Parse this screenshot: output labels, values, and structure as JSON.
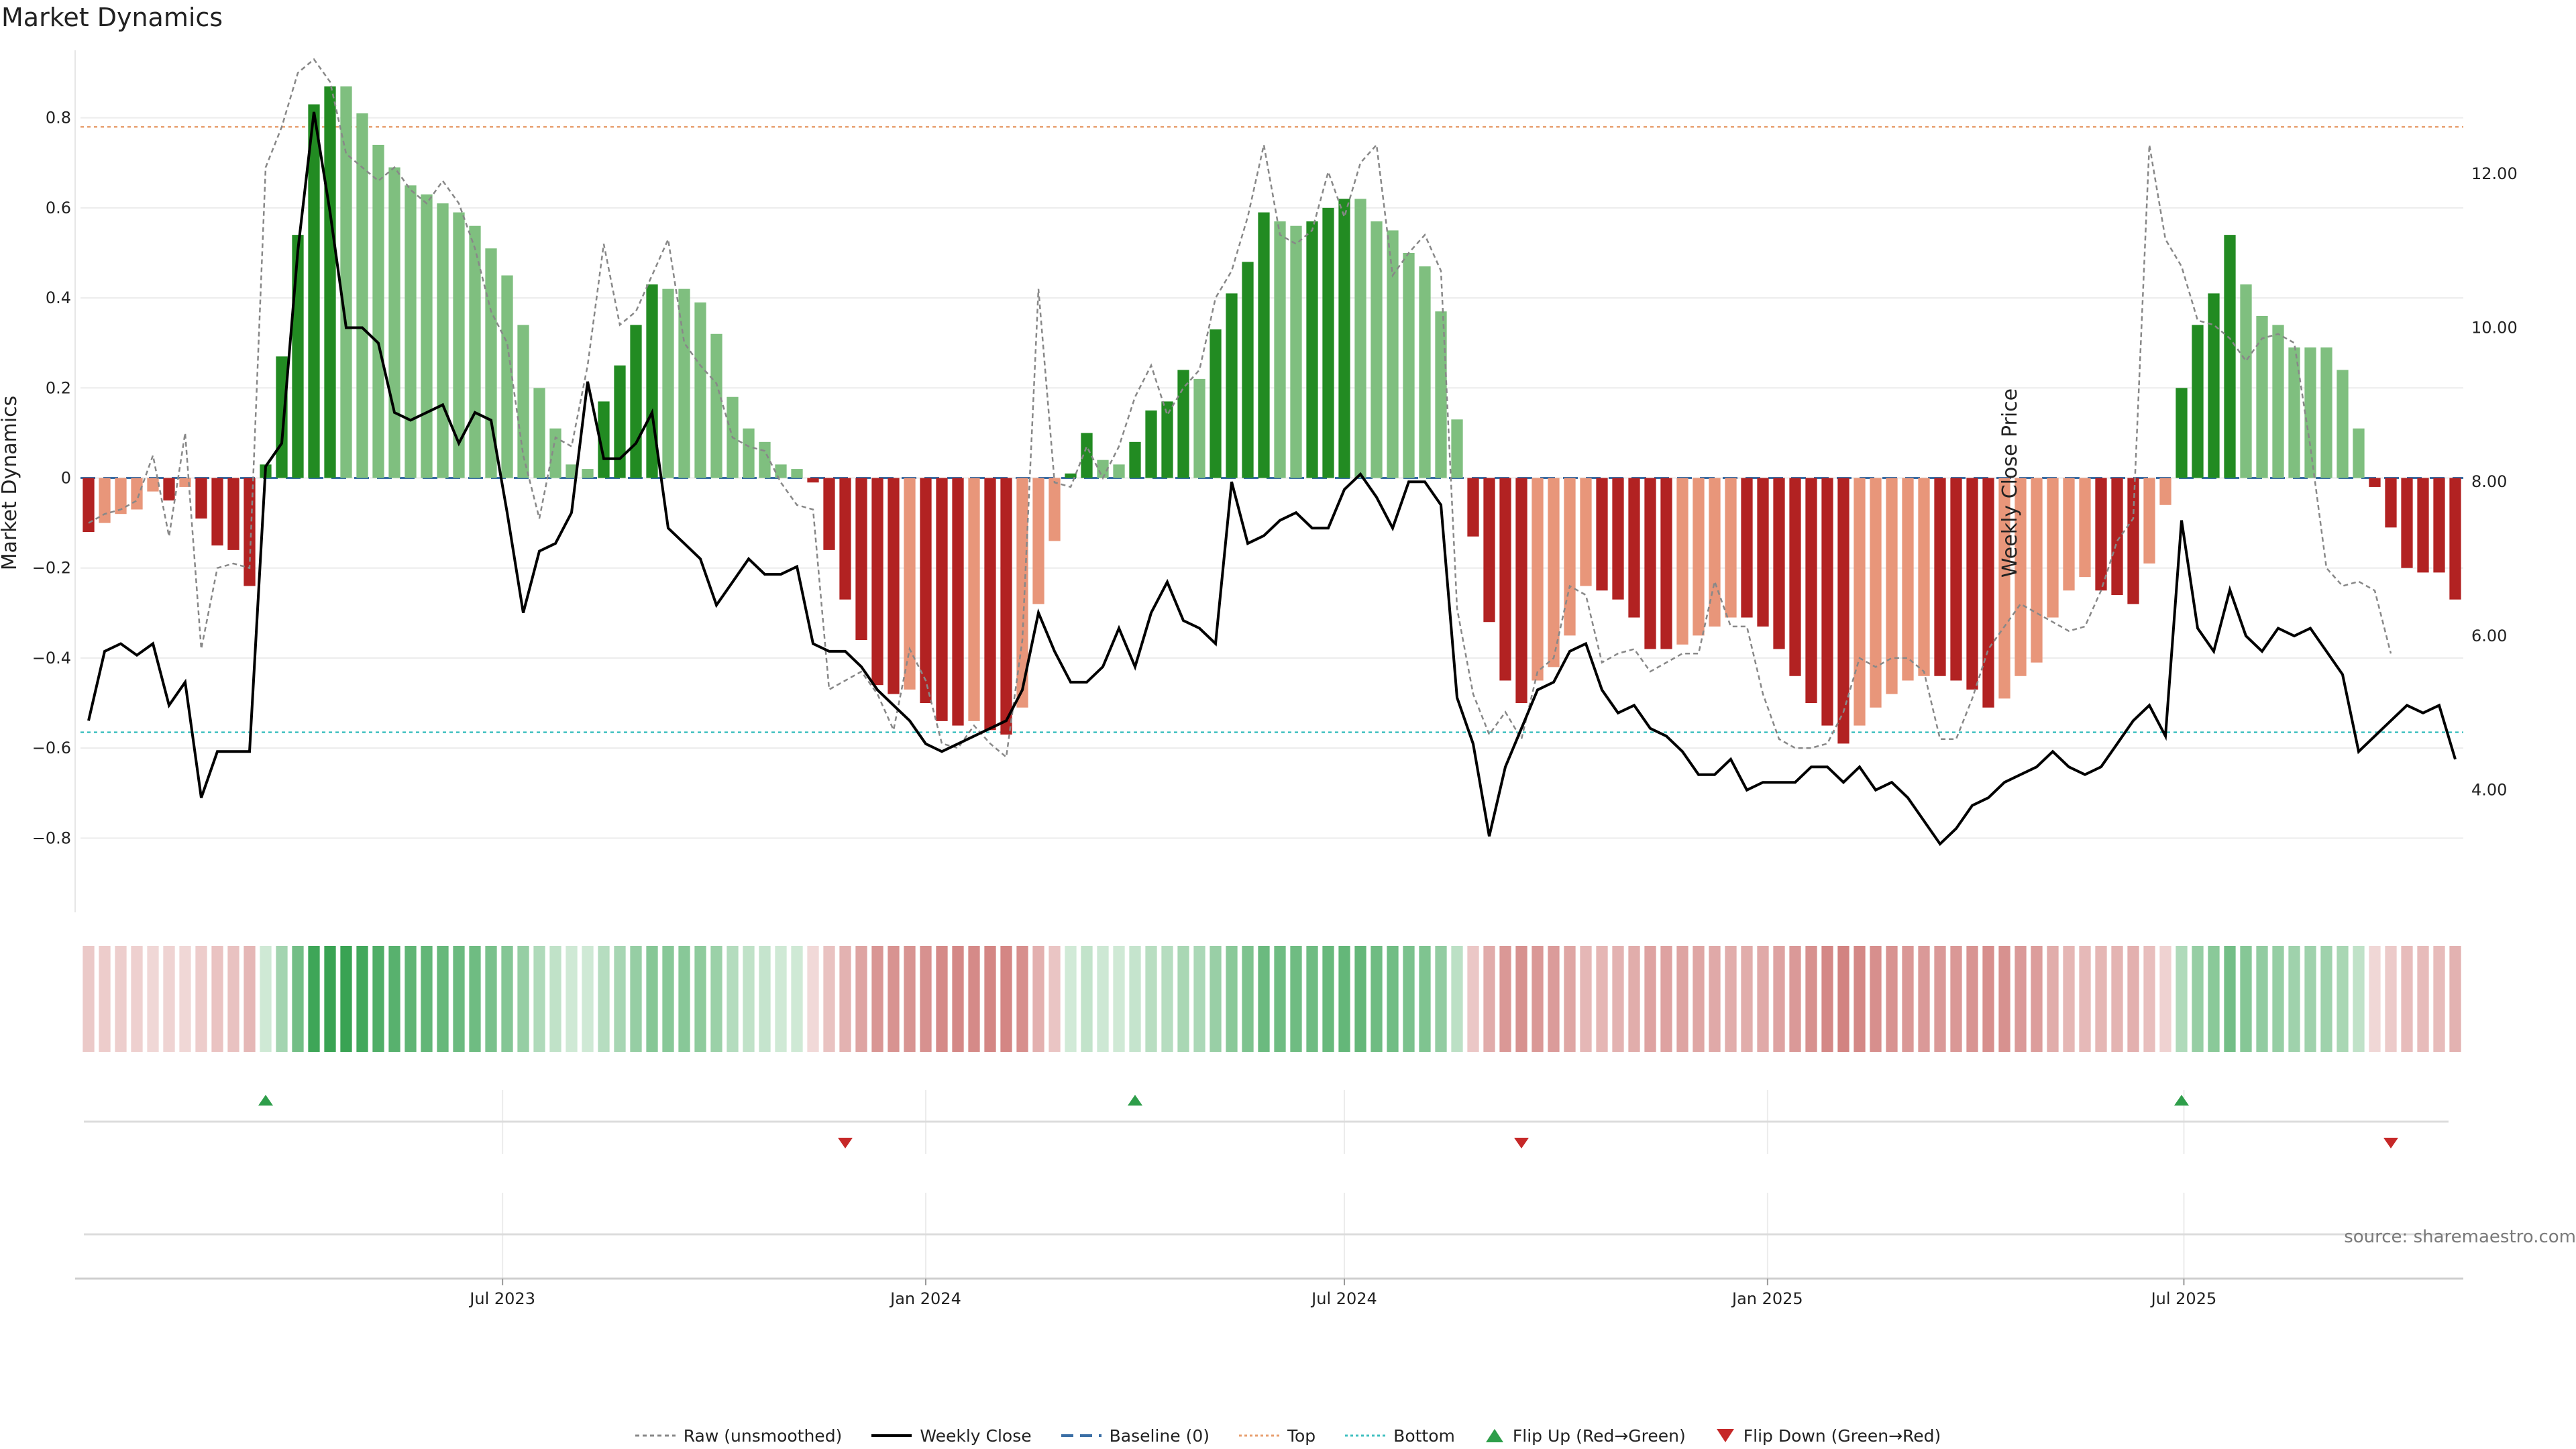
{
  "title": "Market Dynamics",
  "source": "source: sharemaestro.com",
  "colors": {
    "strong_green": "#228B22",
    "light_green": "#7FBF7F",
    "strong_red": "#B22222",
    "light_red": "#E8967A",
    "raw": "#888888",
    "close": "#000000",
    "baseline": "#3a6ea5",
    "top": "#E8A070",
    "bottom": "#40C0C0",
    "flip_up": "#2E9E4A",
    "flip_down": "#C62828"
  },
  "chart_data": {
    "type": "bar",
    "ylabel_left": "Market Dynamics",
    "ylabel_right": "Weekly Close Price",
    "ylim_left": [
      -0.95,
      0.95
    ],
    "ylim_right": [
      2.5,
      13.6
    ],
    "left_ticks": [
      "0.8",
      "0.6",
      "0.4",
      "0.2",
      "0",
      "−0.2",
      "−0.4",
      "−0.6",
      "−0.8"
    ],
    "right_ticks": [
      "12.00",
      "10.00",
      "8.00",
      "6.00",
      "4.00"
    ],
    "x_ticks": [
      "Jul 2023",
      "Jan 2024",
      "Jul 2024",
      "Jan 2025",
      "Jul 2025"
    ],
    "start_date": "2023-01-02",
    "top_level": 0.78,
    "bottom_level": -0.565,
    "baseline": 0,
    "dynamics": [
      -0.12,
      -0.1,
      -0.08,
      -0.07,
      -0.03,
      -0.05,
      -0.02,
      -0.09,
      -0.15,
      -0.16,
      -0.24,
      0.03,
      0.27,
      0.54,
      0.83,
      0.87,
      0.87,
      0.81,
      0.74,
      0.69,
      0.65,
      0.63,
      0.61,
      0.59,
      0.56,
      0.51,
      0.45,
      0.34,
      0.2,
      0.11,
      0.03,
      0.02,
      0.17,
      0.25,
      0.34,
      0.43,
      0.42,
      0.42,
      0.39,
      0.32,
      0.18,
      0.11,
      0.08,
      0.03,
      0.02,
      -0.01,
      -0.16,
      -0.27,
      -0.36,
      -0.46,
      -0.48,
      -0.47,
      -0.5,
      -0.54,
      -0.55,
      -0.54,
      -0.56,
      -0.57,
      -0.51,
      -0.28,
      -0.14,
      0.01,
      0.1,
      0.04,
      0.03,
      0.08,
      0.15,
      0.17,
      0.24,
      0.22,
      0.33,
      0.41,
      0.48,
      0.59,
      0.57,
      0.56,
      0.57,
      0.6,
      0.62,
      0.62,
      0.57,
      0.55,
      0.5,
      0.47,
      0.37,
      0.13,
      -0.13,
      -0.32,
      -0.45,
      -0.5,
      -0.45,
      -0.42,
      -0.35,
      -0.24,
      -0.25,
      -0.27,
      -0.31,
      -0.38,
      -0.38,
      -0.37,
      -0.35,
      -0.33,
      -0.31,
      -0.31,
      -0.33,
      -0.38,
      -0.44,
      -0.5,
      -0.55,
      -0.59,
      -0.55,
      -0.51,
      -0.48,
      -0.45,
      -0.44,
      -0.44,
      -0.45,
      -0.47,
      -0.51,
      -0.49,
      -0.44,
      -0.41,
      -0.31,
      -0.25,
      -0.22,
      -0.25,
      -0.26,
      -0.28,
      -0.19,
      -0.06,
      0.2,
      0.34,
      0.41,
      0.54,
      0.43,
      0.36,
      0.34,
      0.29,
      0.29,
      0.29,
      0.24,
      0.11,
      -0.02,
      -0.11,
      -0.2,
      -0.21,
      -0.21,
      -0.27
    ],
    "raw": [
      -0.1,
      -0.08,
      -0.07,
      -0.05,
      0.05,
      -0.13,
      0.1,
      -0.38,
      -0.2,
      -0.19,
      -0.2,
      0.69,
      0.78,
      0.9,
      0.93,
      0.88,
      0.72,
      0.69,
      0.66,
      0.69,
      0.64,
      0.61,
      0.66,
      0.61,
      0.51,
      0.37,
      0.3,
      0.05,
      -0.09,
      0.09,
      0.07,
      0.25,
      0.52,
      0.34,
      0.37,
      0.45,
      0.53,
      0.3,
      0.25,
      0.21,
      0.09,
      0.07,
      0.06,
      -0.01,
      -0.06,
      -0.07,
      -0.47,
      -0.45,
      -0.43,
      -0.48,
      -0.56,
      -0.38,
      -0.45,
      -0.59,
      -0.6,
      -0.55,
      -0.59,
      -0.62,
      -0.36,
      0.42,
      -0.01,
      -0.02,
      0.07,
      0.0,
      0.07,
      0.18,
      0.25,
      0.14,
      0.2,
      0.24,
      0.4,
      0.46,
      0.58,
      0.74,
      0.54,
      0.52,
      0.55,
      0.68,
      0.58,
      0.7,
      0.74,
      0.45,
      0.5,
      0.54,
      0.46,
      -0.29,
      -0.48,
      -0.57,
      -0.52,
      -0.58,
      -0.43,
      -0.4,
      -0.24,
      -0.26,
      -0.41,
      -0.39,
      -0.38,
      -0.43,
      -0.41,
      -0.39,
      -0.39,
      -0.23,
      -0.33,
      -0.33,
      -0.48,
      -0.58,
      -0.6,
      -0.6,
      -0.59,
      -0.52,
      -0.4,
      -0.42,
      -0.4,
      -0.4,
      -0.43,
      -0.58,
      -0.58,
      -0.49,
      -0.38,
      -0.33,
      -0.28,
      -0.3,
      -0.32,
      -0.34,
      -0.33,
      -0.25,
      -0.14,
      -0.09,
      0.74,
      0.53,
      0.47,
      0.35,
      0.34,
      0.31,
      0.26,
      0.31,
      0.32,
      0.3,
      0.07,
      -0.2,
      -0.24,
      -0.23,
      -0.25,
      -0.39
    ],
    "weekly_close": [
      4.9,
      5.8,
      5.9,
      5.75,
      5.9,
      5.1,
      5.4,
      3.9,
      4.5,
      4.5,
      4.5,
      8.2,
      8.5,
      11.0,
      12.8,
      11.5,
      10.0,
      10.0,
      9.8,
      8.9,
      8.8,
      8.9,
      9.0,
      8.5,
      8.9,
      8.8,
      7.6,
      6.3,
      7.1,
      7.2,
      7.6,
      9.3,
      8.3,
      8.3,
      8.5,
      8.9,
      7.4,
      7.2,
      7.0,
      6.4,
      6.7,
      7.0,
      6.8,
      6.8,
      6.9,
      5.9,
      5.8,
      5.8,
      5.6,
      5.3,
      5.1,
      4.9,
      4.6,
      4.5,
      4.6,
      4.7,
      4.8,
      4.9,
      5.3,
      6.3,
      5.8,
      5.4,
      5.4,
      5.6,
      6.1,
      5.6,
      6.3,
      6.7,
      6.2,
      6.1,
      5.9,
      8.0,
      7.2,
      7.3,
      7.5,
      7.6,
      7.4,
      7.4,
      7.9,
      8.1,
      7.8,
      7.4,
      8.0,
      8.0,
      7.7,
      5.2,
      4.6,
      3.4,
      4.3,
      4.8,
      5.3,
      5.4,
      5.8,
      5.9,
      5.3,
      5.0,
      5.1,
      4.8,
      4.7,
      4.5,
      4.2,
      4.2,
      4.4,
      4.0,
      4.1,
      4.1,
      4.1,
      4.3,
      4.3,
      4.1,
      4.3,
      4.0,
      4.1,
      3.9,
      3.6,
      3.3,
      3.5,
      3.8,
      3.9,
      4.1,
      4.2,
      4.3,
      4.5,
      4.3,
      4.2,
      4.3,
      4.6,
      4.9,
      5.1,
      4.7,
      7.5,
      6.1,
      5.8,
      6.6,
      6.0,
      5.8,
      6.1,
      6.0,
      6.1,
      5.8,
      5.5,
      4.5,
      4.7,
      4.9,
      5.1,
      5.0,
      5.1,
      4.4
    ],
    "flip_up_dates": [
      "2023-03-20",
      "2024-04-01",
      "2025-06-30"
    ],
    "flip_down_dates": [
      "2023-11-27",
      "2024-09-16",
      "2025-09-29"
    ],
    "legend": [
      "Raw (unsmoothed)",
      "Weekly Close",
      "Baseline (0)",
      "Top",
      "Bottom",
      "Flip Up (Red→Green)",
      "Flip Down (Green→Red)"
    ]
  }
}
